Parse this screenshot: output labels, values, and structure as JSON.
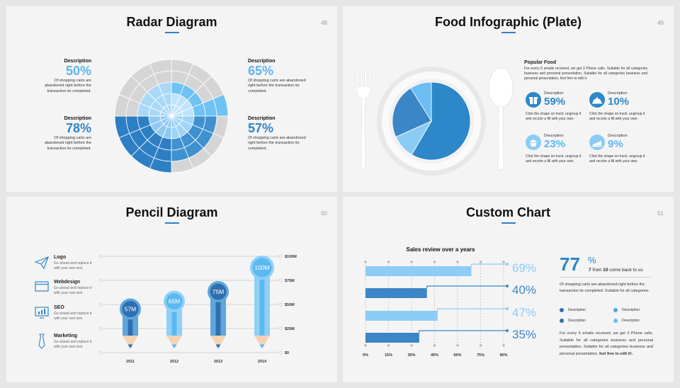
{
  "slides": [
    {
      "title": "Radar Diagram",
      "page": "48",
      "items": [
        {
          "label": "Description",
          "pct": "50%",
          "text": "Of shopping carts are abandoned right before the transaction its completed."
        },
        {
          "label": "Description",
          "pct": "65%",
          "text": "Of shopping carts are abandoned right before the transaction its completed."
        },
        {
          "label": "Description",
          "pct": "78%",
          "text": "Of shopping carts are abandoned right before the transaction its completed."
        },
        {
          "label": "Description",
          "pct": "57%",
          "text": "Of shopping carts are abandoned right before the transaction its completed."
        }
      ]
    },
    {
      "title": "Food Infographic (Plate)",
      "page": "49",
      "heading": "Popular Food",
      "intro": "For every 6 emails received, we get 3 Phone calls. Suitable for all categories business and personal presentation, Suitable for all categories business and personal presentation, feel free to edit it.",
      "pie": [
        59,
        10,
        23,
        9
      ],
      "items": [
        {
          "label": "Description",
          "pct": "59%",
          "text": "Click the shape on truck, ungroup it and recolor a fill with your own.",
          "icon": "gift-icon"
        },
        {
          "label": "Description",
          "pct": "10%",
          "text": "Click the shape on truck, ungroup it and recolor a fill with your own.",
          "icon": "cloche-icon"
        },
        {
          "label": "Description",
          "pct": "23%",
          "text": "Click the shape on truck, ungroup it and recolor a fill with your own.",
          "icon": "cupcake-icon"
        },
        {
          "label": "Description",
          "pct": "9%",
          "text": "Click the shape on truck, ungroup it and recolor a fill with your own.",
          "icon": "cake-icon"
        }
      ]
    },
    {
      "title": "Pencil Diagram",
      "page": "50",
      "items": [
        {
          "title": "Logo",
          "text": "Go ahead and replace it with your own text.",
          "icon": "paper-plane-icon"
        },
        {
          "title": "Webdesign",
          "text": "Go ahead and replace it with your own text.",
          "icon": "browser-icon"
        },
        {
          "title": "SEO",
          "text": "Go ahead and replace it with your own text.",
          "icon": "chart-monitor-icon"
        },
        {
          "title": "Marketing",
          "text": "Go ahead and replace it with your own text.",
          "icon": "tie-icon"
        }
      ],
      "chart_data": {
        "type": "bar",
        "categories": [
          "2011",
          "2012",
          "2013",
          "2014"
        ],
        "values": [
          57,
          65,
          75,
          100
        ],
        "data_labels": [
          "57M",
          "65M",
          "75M",
          "100M"
        ],
        "y_ticks": [
          "$100M",
          "$75M",
          "$50M",
          "$25M",
          "$0"
        ],
        "ylim": [
          0,
          100
        ],
        "colors": [
          "#2f6fb0",
          "#5bb8f0",
          "#2f6fb0",
          "#5bb8f0"
        ]
      }
    },
    {
      "title": "Custom Chart",
      "page": "51",
      "chart_title": "Sales review over a years",
      "big_number": "77",
      "big_unit": "%",
      "sub_prefix": "7",
      "sub_mid": " from ",
      "sub_num": "10",
      "sub_suffix": " come back to us",
      "para1": "Of shopping carts are abandoned right before the transaction its completed. Suitable for all categories",
      "legend": [
        "Description",
        "Description",
        "Description",
        "Description"
      ],
      "para2": "For every 6 emails received, we get 3 Phone calls. Suitable for all categories business and personal presentation, Suitable for all categories business and personal presentation,",
      "para2_bold": "feel free to edit it!.",
      "chart_data": {
        "type": "bar",
        "orientation": "horizontal",
        "values": [
          69,
          40,
          47,
          35
        ],
        "data_labels": [
          "69%",
          "40%",
          "47%",
          "35%"
        ],
        "x_ticks": [
          "0%",
          "15%",
          "30%",
          "45%",
          "60%",
          "75%",
          "90%"
        ],
        "xlim": [
          0,
          90
        ],
        "colors": [
          "#8cccf5",
          "#3b86c6",
          "#8cccf5",
          "#3b86c6"
        ]
      }
    }
  ]
}
